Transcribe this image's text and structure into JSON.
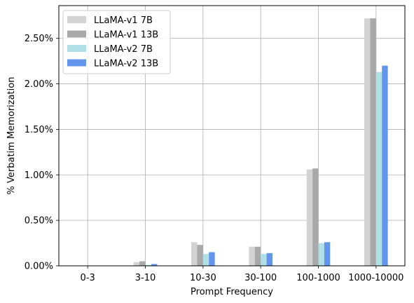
{
  "chart_data": {
    "type": "bar",
    "title": "",
    "xlabel": "Prompt Frequency",
    "ylabel": "% Verbatim Memorization",
    "categories": [
      "0-3",
      "3-10",
      "10-30",
      "30-100",
      "100-1000",
      "1000-10000"
    ],
    "series": [
      {
        "name": "LLaMA-v1 7B",
        "color": "#d3d3d3",
        "values": [
          0.0,
          0.04,
          0.26,
          0.21,
          1.06,
          2.72
        ]
      },
      {
        "name": "LLaMA-v1 13B",
        "color": "#a9a9a9",
        "values": [
          0.0,
          0.05,
          0.23,
          0.21,
          1.07,
          2.72
        ]
      },
      {
        "name": "LLaMA-v2 7B",
        "color": "#b0e0e6",
        "values": [
          0.0,
          0.01,
          0.13,
          0.13,
          0.25,
          2.13
        ]
      },
      {
        "name": "LLaMA-v2 13B",
        "color": "#6495ed",
        "values": [
          0.0,
          0.02,
          0.15,
          0.14,
          0.26,
          2.2
        ]
      }
    ],
    "yticks": [
      "0.00%",
      "0.50%",
      "1.00%",
      "1.50%",
      "2.00%",
      "2.50%"
    ],
    "ytick_values": [
      0,
      0.5,
      1.0,
      1.5,
      2.0,
      2.5
    ],
    "ylim": [
      0,
      2.86
    ],
    "grid": true,
    "legend_position": "upper-left"
  }
}
